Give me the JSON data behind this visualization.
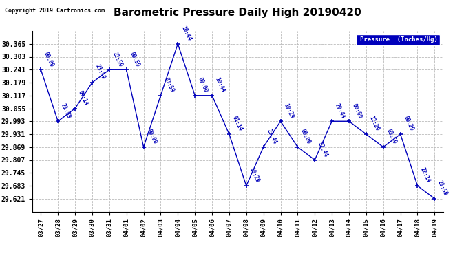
{
  "title": "Barometric Pressure Daily High 20190420",
  "copyright": "Copyright 2019 Cartronics.com",
  "legend_label": "Pressure  (Inches/Hg)",
  "line_color": "#0000BB",
  "background_color": "#ffffff",
  "grid_color": "#BBBBBB",
  "dates": [
    "03/27",
    "03/28",
    "03/29",
    "03/30",
    "03/31",
    "04/01",
    "04/02",
    "04/03",
    "04/04",
    "04/05",
    "04/06",
    "04/07",
    "04/08",
    "04/09",
    "04/10",
    "04/11",
    "04/12",
    "04/13",
    "04/14",
    "04/15",
    "04/16",
    "04/17",
    "04/18",
    "04/19"
  ],
  "values": [
    30.241,
    29.993,
    30.055,
    30.179,
    30.241,
    30.241,
    29.869,
    30.117,
    30.365,
    30.117,
    30.117,
    29.931,
    29.683,
    29.869,
    29.993,
    29.869,
    29.807,
    29.993,
    29.993,
    29.931,
    29.869,
    29.931,
    29.683,
    29.621
  ],
  "time_labels": [
    "00:00",
    "21:59",
    "09:14",
    "23:59",
    "22:59",
    "00:59",
    "00:00",
    "03:59",
    "10:44",
    "00:00",
    "10:44",
    "01:14",
    "10:29",
    "23:44",
    "10:29",
    "00:00",
    "22:44",
    "20:44",
    "00:00",
    "12:29",
    "03:59",
    "00:29",
    "22:14",
    "21:59"
  ],
  "ylim_min": 29.559,
  "ylim_max": 30.427,
  "yticks": [
    29.621,
    29.683,
    29.745,
    29.807,
    29.869,
    29.931,
    29.993,
    30.055,
    30.117,
    30.179,
    30.241,
    30.303,
    30.365
  ]
}
